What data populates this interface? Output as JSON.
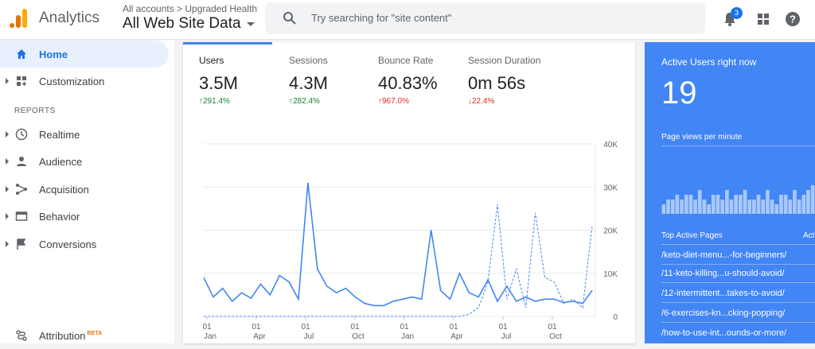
{
  "app": {
    "name": "Analytics"
  },
  "header": {
    "breadcrumb": "All accounts > Upgraded Health",
    "view": "All Web Site Data",
    "search_placeholder": "Try searching for \"site content\"",
    "notification_count": "3"
  },
  "sidebar": {
    "home": "Home",
    "customization": "Customization",
    "reports_label": "REPORTS",
    "items": [
      "Realtime",
      "Audience",
      "Acquisition",
      "Behavior",
      "Conversions"
    ],
    "attribution": "Attribution",
    "beta": "BETA"
  },
  "metrics": [
    {
      "label": "Users",
      "value": "3.5M",
      "change": "291.4%"
    },
    {
      "label": "Sessions",
      "value": "4.3M",
      "change": "282.4%"
    },
    {
      "label": "Bounce Rate",
      "value": "40.83%",
      "change": "967.0%"
    },
    {
      "label": "Session Duration",
      "value": "0m 56s",
      "change": "22.4%"
    }
  ],
  "chart_data": {
    "type": "line",
    "y_ticks": [
      "40K",
      "30K",
      "20K",
      "10K",
      "0"
    ],
    "ylim": [
      0,
      40000
    ],
    "x_ticks": [
      {
        "day": "01",
        "month": "Jan"
      },
      {
        "day": "01",
        "month": "Apr"
      },
      {
        "day": "01",
        "month": "Jul"
      },
      {
        "day": "01",
        "month": "Oct"
      },
      {
        "day": "01",
        "month": "Jan"
      },
      {
        "day": "01",
        "month": "Apr"
      },
      {
        "day": "01",
        "month": "Jul"
      },
      {
        "day": "01",
        "month": "Oct"
      }
    ],
    "series": [
      {
        "style": "solid",
        "color": "#4285f4",
        "values": [
          9000,
          4500,
          6500,
          3500,
          5500,
          4200,
          7500,
          5000,
          9500,
          8000,
          4000,
          31000,
          11000,
          7000,
          5500,
          6500,
          4500,
          3000,
          2500,
          2500,
          3500,
          4000,
          4500,
          4000,
          20000,
          6000,
          4000,
          10000,
          5500,
          4500,
          8500,
          3500,
          7000,
          3500,
          4500,
          3500,
          4000,
          4000,
          3200,
          3500,
          3000,
          6000
        ]
      },
      {
        "style": "dashed",
        "color": "#4285f4",
        "values": [
          0,
          0,
          0,
          0,
          0,
          0,
          0,
          0,
          0,
          0,
          0,
          0,
          0,
          0,
          0,
          0,
          0,
          0,
          0,
          0,
          0,
          0,
          0,
          0,
          0,
          0,
          0,
          0,
          500,
          2000,
          8000,
          26000,
          4000,
          11000,
          2000,
          24000,
          9000,
          8000,
          3000,
          4000,
          2000,
          21000
        ]
      }
    ]
  },
  "realtime": {
    "title": "Active Users right now",
    "count": "19",
    "page_views_label": "Page views per minute",
    "bars": [
      2,
      3,
      3,
      4,
      3,
      4,
      4,
      3,
      5,
      3,
      2,
      4,
      4,
      3,
      5,
      3,
      4,
      4,
      5,
      3,
      3,
      4,
      3,
      5,
      3,
      2,
      4,
      4,
      3,
      5,
      3,
      4,
      5,
      6
    ],
    "top_pages_label": "Top Active Pages",
    "col2_label": "Acti",
    "pages": [
      "/keto-diet-menu...-for-beginners/",
      "/11-keto-killing...u-should-avoid/",
      "/12-intermittent...takes-to-avoid/",
      "/6-exercises-kn...cking-popping/",
      "/how-to-use-int...ounds-or-more/"
    ]
  }
}
